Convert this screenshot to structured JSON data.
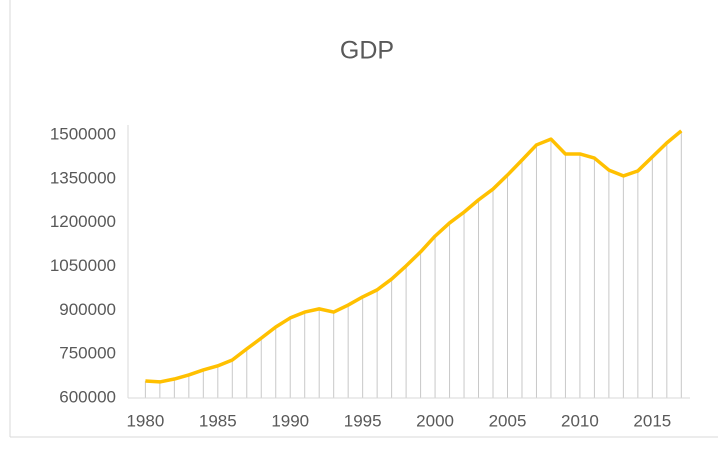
{
  "chart_data": {
    "type": "line",
    "title": "GDP",
    "x": [
      1980,
      1981,
      1982,
      1983,
      1984,
      1985,
      1986,
      1987,
      1988,
      1989,
      1990,
      1991,
      1992,
      1993,
      1994,
      1995,
      1996,
      1997,
      1998,
      1999,
      2000,
      2001,
      2002,
      2003,
      2004,
      2005,
      2006,
      2007,
      2008,
      2009,
      2010,
      2011,
      2012,
      2013,
      2014,
      2015,
      2016,
      2017
    ],
    "series": [
      {
        "name": "GDP",
        "color": "#ffc000",
        "values": [
          658000,
          655000,
          665000,
          679000,
          696000,
          710000,
          730000,
          768000,
          805000,
          843000,
          874000,
          894000,
          905000,
          894000,
          918000,
          946000,
          970000,
          1007000,
          1052000,
          1100000,
          1154000,
          1199000,
          1236000,
          1278000,
          1315000,
          1363000,
          1414000,
          1466000,
          1486000,
          1435000,
          1435000,
          1421000,
          1380000,
          1360000,
          1377000,
          1425000,
          1473000,
          1514000
        ]
      }
    ],
    "xlim": [
      1978.8,
      2017.6
    ],
    "xticks": [
      1980,
      1985,
      1990,
      1995,
      2000,
      2005,
      2010,
      2015
    ],
    "ylim": [
      600000,
      1500000
    ],
    "yticks": [
      600000,
      750000,
      900000,
      1050000,
      1200000,
      1350000,
      1500000
    ],
    "drop_lines": true,
    "grid": false
  }
}
